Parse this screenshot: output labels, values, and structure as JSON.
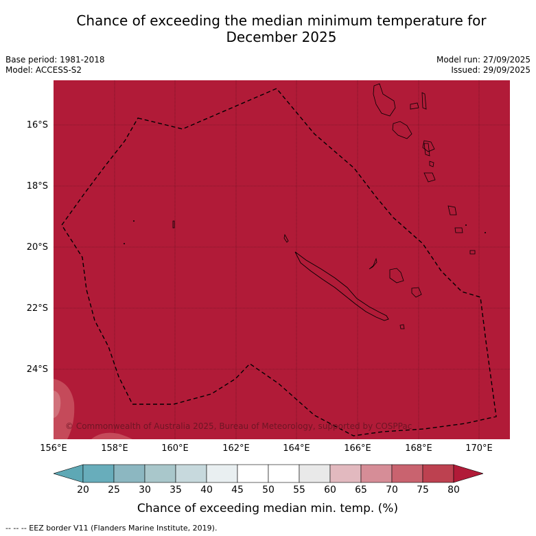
{
  "title_line1": "Chance of exceeding the median minimum temperature for",
  "title_line2": "December 2025",
  "meta": {
    "base_period": "Base period: 1981-2018",
    "model": "Model: ACCESS-S2",
    "model_run": "Model run: 27/09/2025",
    "issued": "Issued: 29/09/2025"
  },
  "map": {
    "lat_labels": [
      "16°S",
      "18°S",
      "20°S",
      "22°S",
      "24°S"
    ],
    "lon_labels": [
      "156°E",
      "158°E",
      "160°E",
      "162°E",
      "164°E",
      "166°E",
      "168°E",
      "170°E"
    ],
    "fill_color": "#b11b38",
    "copyright": "© Commonwealth of Australia 2025, Bureau of Meteorology, supported by COSPPac"
  },
  "colorbar": {
    "ticks": [
      "20",
      "25",
      "30",
      "35",
      "40",
      "45",
      "50",
      "55",
      "60",
      "65",
      "70",
      "75",
      "80"
    ],
    "colors": [
      "#5ea8b5",
      "#68adbb",
      "#8cb7c1",
      "#a9c7cb",
      "#c7d9dd",
      "#e9eff1",
      "#ffffff",
      "#ffffff",
      "#e9e9e9",
      "#e2b9bf",
      "#d68d97",
      "#c9636f",
      "#bd4150",
      "#b11b38"
    ],
    "title": "Chance of exceeding median min. temp. (%)"
  },
  "footnote": "--  --  -- EEZ border V11 (Flanders Marine Institute, 2019)."
}
